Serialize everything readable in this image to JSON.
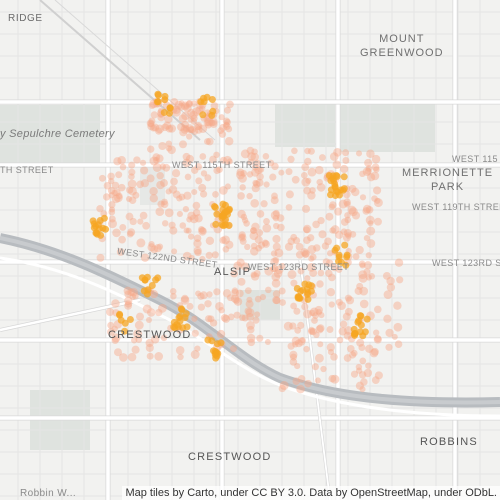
{
  "map": {
    "labels": {
      "ridge": "RIDGE",
      "mount_greenwood": "MOUNT\nGREENWOOD",
      "cemetery": "y Sepulchre Cemetery",
      "th_street": "TH STREET",
      "w115": "WEST 115TH STREET",
      "w115_right": "WEST 115",
      "merrionette_park": "MERRIONETTE\nPARK",
      "w119": "WEST 119TH STREET",
      "w122": "WEST 122ND STREET",
      "alsip": "ALSIP",
      "w123": "WEST 123RD STREET",
      "w123_right": "WEST 123RD S",
      "crestwood_a": "CRESTWOOD",
      "crestwood_b": "CRESTWOOD",
      "robbins": "ROBBINS",
      "robbin_partial": "Robbin W..."
    },
    "attribution": "Map tiles by Carto, under CC BY 3.0. Data by OpenStreetMap, under ODbL.",
    "colors": {
      "background": "#f2f2f0",
      "park": "#dfe3df",
      "road": "#ffffff",
      "road_outline": "#d8d8d8",
      "canal": "#b8bcc0",
      "point_light": "#f7a98a",
      "point_dense": "#f5a623"
    }
  }
}
